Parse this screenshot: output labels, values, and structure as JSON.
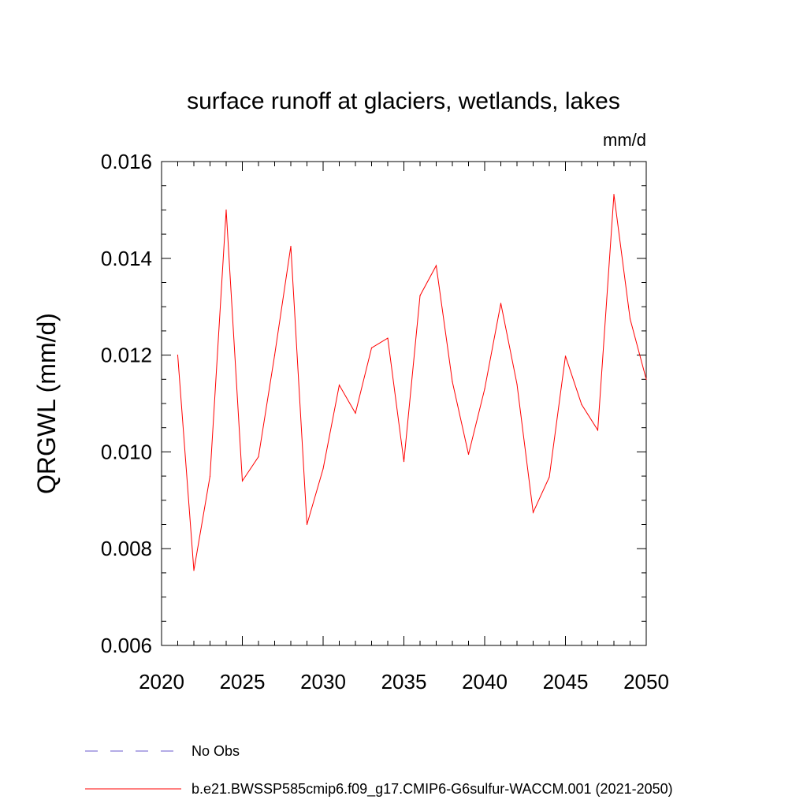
{
  "chart_data": {
    "type": "line",
    "title": "surface runoff at glaciers, wetlands, lakes",
    "units": "mm/d",
    "ylabel": "QRGWL  (mm/d)",
    "xlabel": "",
    "xlim": [
      2020,
      2050
    ],
    "ylim": [
      0.006,
      0.016
    ],
    "xticks": [
      "2020",
      "2025",
      "2030",
      "2035",
      "2040",
      "2045",
      "2050"
    ],
    "yticks": [
      "0.006",
      "0.008",
      "0.010",
      "0.012",
      "0.014",
      "0.016"
    ],
    "x": [
      2021,
      2022,
      2023,
      2024,
      2025,
      2026,
      2027,
      2028,
      2029,
      2030,
      2031,
      2032,
      2033,
      2034,
      2035,
      2036,
      2037,
      2038,
      2039,
      2040,
      2041,
      2042,
      2043,
      2044,
      2045,
      2046,
      2047,
      2048,
      2049,
      2050
    ],
    "series": [
      {
        "name": "b.e21.BWSSP585cmip6.f09_g17.CMIP6-G6sulfur-WACCM.001 (2021-2050)",
        "color": "#ff0000",
        "values": [
          0.012,
          0.00755,
          0.0095,
          0.015,
          0.0094,
          0.0099,
          0.012,
          0.01425,
          0.0085,
          0.00965,
          0.01138,
          0.0108,
          0.01215,
          0.01235,
          0.0098,
          0.01323,
          0.01385,
          0.01145,
          0.00995,
          0.0113,
          0.01307,
          0.0114,
          0.00875,
          0.00948,
          0.01198,
          0.01098,
          0.01045,
          0.01532,
          0.01275,
          0.0115
        ]
      }
    ],
    "legend": [
      {
        "label": "No Obs",
        "color": "#6a5acd",
        "style": "dashed"
      },
      {
        "label": "b.e21.BWSSP585cmip6.f09_g17.CMIP6-G6sulfur-WACCM.001 (2021-2050)",
        "color": "#ff0000",
        "style": "solid"
      }
    ],
    "legend_placement": "bottom",
    "grid": false
  }
}
